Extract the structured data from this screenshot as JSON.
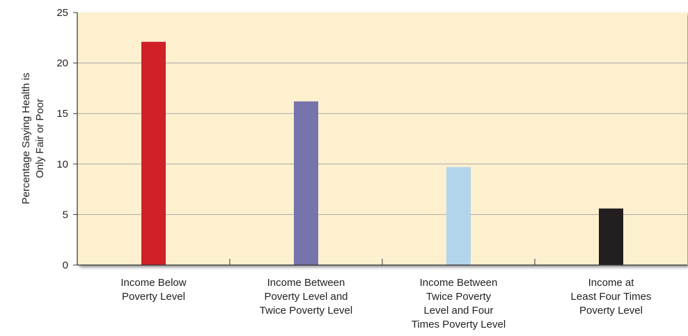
{
  "chart_data": {
    "type": "bar",
    "title": "",
    "xlabel": "",
    "ylabel": [
      "Percentage Saying Health is",
      "Only Fair or Poor"
    ],
    "ylim": [
      0,
      25
    ],
    "yticks": [
      0,
      5,
      10,
      15,
      20,
      25
    ],
    "grid": true,
    "background_color": "#fdf0cf",
    "categories": [
      [
        "Income Below",
        "Poverty Level"
      ],
      [
        "Income Between",
        "Poverty Level and",
        "Twice Poverty Level"
      ],
      [
        "Income Between",
        "Twice Poverty",
        "Level and Four",
        "Times Poverty Level"
      ],
      [
        "Income at",
        "Least Four Times",
        "Poverty Level"
      ]
    ],
    "values": [
      22.1,
      16.2,
      9.7,
      5.6
    ],
    "bar_colors": [
      "#d02028",
      "#7674ad",
      "#b3d5ec",
      "#231f20"
    ]
  }
}
